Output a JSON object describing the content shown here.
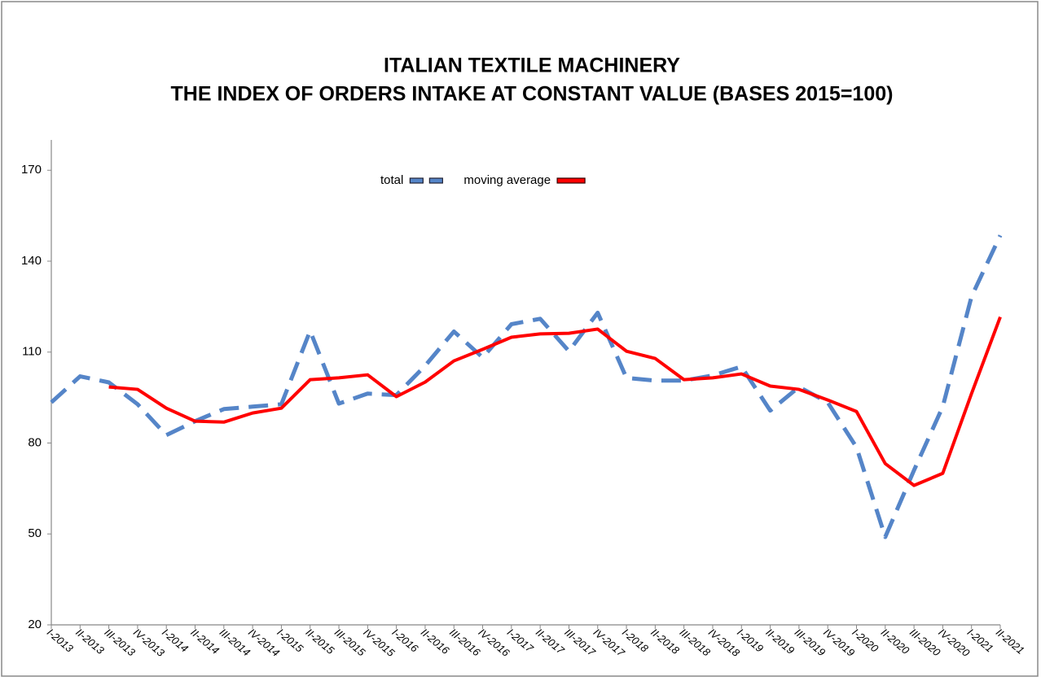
{
  "chart_data": {
    "type": "line",
    "title": "ITALIAN TEXTILE MACHINERY",
    "subtitle": "THE INDEX OF ORDERS INTAKE AT CONSTANT VALUE (BASES 2015=100)",
    "categories": [
      "I-2013",
      "II-2013",
      "III-2013",
      "IV-2013",
      "I-2014",
      "II-2014",
      "III-2014",
      "IV-2014",
      "I-2015",
      "II-2015",
      "III-2015",
      "IV-2015",
      "I-2016",
      "II-2016",
      "III-2016",
      "IV-2016",
      "I-2017",
      "II-2017",
      "III-2017",
      "IV-2017",
      "I-2018",
      "II-2018",
      "III-2018",
      "IV-2018",
      "I-2019",
      "II-2019",
      "III-2019",
      "IV-2019",
      "I-2020",
      "II-2020",
      "III-2020",
      "IV-2020",
      "I-2021",
      "II-2021"
    ],
    "series": [
      {
        "name": "total",
        "color": "#5585c8",
        "dashed": true,
        "values": [
          93.4,
          102,
          100,
          92.8,
          82.6,
          87.2,
          91.2,
          92,
          92.8,
          117,
          93,
          96.3,
          95.8,
          105.5,
          116.8,
          108.2,
          119.2,
          121,
          110.3,
          123,
          101.5,
          100.6,
          100.6,
          102.3,
          105.2,
          90.7,
          98.5,
          93.4,
          78.6,
          49,
          71,
          92,
          128.3,
          148.5
        ]
      },
      {
        "name": "moving average",
        "color": "#ff0000",
        "dashed": false,
        "values": [
          null,
          null,
          98.5,
          97.7,
          91.5,
          87.2,
          86.9,
          89.9,
          91.5,
          100.9,
          101.5,
          102.5,
          95.3,
          100.1,
          107.1,
          110.9,
          114.9,
          116,
          116.2,
          117.6,
          110.3,
          107.9,
          100.9,
          101.5,
          102.8,
          98.8,
          97.7,
          94.2,
          90.4,
          73.2,
          66,
          70,
          96.3,
          121.6
        ]
      }
    ],
    "ylim": [
      20,
      180
    ],
    "yticks": [
      20,
      50,
      80,
      110,
      140,
      170
    ],
    "legend": "top"
  }
}
